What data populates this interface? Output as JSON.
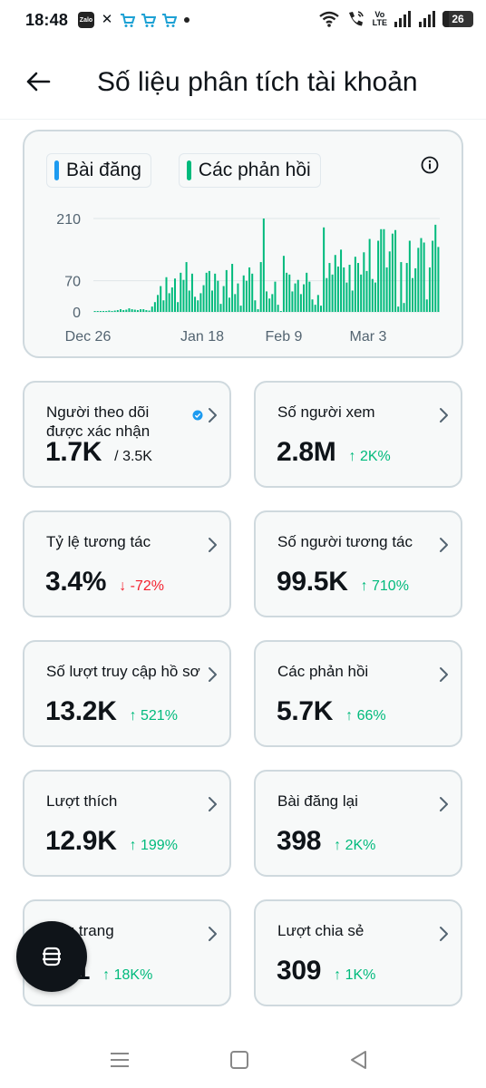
{
  "status_bar": {
    "time": "18:48",
    "volte_top": "Vo",
    "volte_bottom": "LTE",
    "battery": "26",
    "app_icons": [
      "zalo-icon",
      "x-app-icon",
      "shopee-cart-icon",
      "shopee-cart-icon",
      "shopee-cart-icon"
    ],
    "right_icons": [
      "wifi-icon",
      "call-wifi-icon",
      "signal-icon",
      "signal-icon",
      "battery-icon"
    ]
  },
  "header": {
    "title": "Số liệu phân tích tài khoản"
  },
  "chart": {
    "legend": [
      {
        "label": "Bài đăng",
        "color": "#1d9bf0"
      },
      {
        "label": "Các phản hồi",
        "color": "#00ba7c"
      }
    ],
    "info_icon": "info-icon"
  },
  "chart_data": {
    "type": "bar",
    "y_ticks": [
      "210",
      "70",
      "0"
    ],
    "y_tick_values": [
      210,
      70,
      0
    ],
    "x_ticks": [
      "Dec 26",
      "Jan 18",
      "Feb 9",
      "Mar 3"
    ],
    "ylim": [
      0,
      210
    ],
    "grid": true,
    "series": [
      {
        "name": "Các phản hồi",
        "color": "#00ba7c",
        "values": [
          2,
          2,
          2,
          2,
          2,
          3,
          2,
          3,
          4,
          6,
          4,
          5,
          8,
          6,
          5,
          4,
          6,
          6,
          4,
          3,
          12,
          22,
          38,
          58,
          26,
          78,
          42,
          55,
          75,
          22,
          88,
          72,
          112,
          48,
          86,
          34,
          26,
          42,
          60,
          88,
          92,
          48,
          86,
          70,
          18,
          58,
          94,
          32,
          108,
          40,
          64,
          14,
          82,
          70,
          100,
          86,
          26,
          6,
          112,
          210,
          46,
          30,
          40,
          68,
          16,
          2,
          126,
          88,
          84,
          46,
          64,
          72,
          40,
          62,
          88,
          68,
          28,
          16,
          38,
          14,
          190,
          76,
          110,
          84,
          128,
          102,
          140,
          100,
          66,
          106,
          48,
          124,
          110,
          84,
          134,
          92,
          164,
          74,
          66,
          160,
          186,
          186,
          100,
          136,
          176,
          184,
          12,
          112,
          20,
          110,
          160,
          76,
          98,
          144,
          166,
          156,
          28,
          100,
          160,
          196,
          146
        ]
      }
    ]
  },
  "metrics": [
    {
      "label": "Người theo dõi được xác nhận",
      "value": "1.7K",
      "sub": "/ 3.5K",
      "verified": true
    },
    {
      "label": "Số người xem",
      "value": "2.8M",
      "change": "↑ 2K%",
      "direction": "up"
    },
    {
      "label": "Tỷ lệ tương tác",
      "value": "3.4%",
      "change": "↓ -72%",
      "direction": "down"
    },
    {
      "label": "Số người tương tác",
      "value": "99.5K",
      "change": "↑ 710%",
      "direction": "up"
    },
    {
      "label": "Số lượt truy cập hồ sơ",
      "value": "13.2K",
      "change": "↑ 521%",
      "direction": "up"
    },
    {
      "label": "Các phản hồi",
      "value": "5.7K",
      "change": "↑ 66%",
      "direction": "up"
    },
    {
      "label": "Lượt thích",
      "value": "12.9K",
      "change": "↑ 199%",
      "direction": "up"
    },
    {
      "label": "Bài đăng lại",
      "value": "398",
      "change": "↑ 2K%",
      "direction": "up"
    },
    {
      "label": "Dấu trang",
      "value": "951",
      "change": "↑ 18K%",
      "direction": "up"
    },
    {
      "label": "Lượt chia sẻ",
      "value": "309",
      "change": "↑ 1K%",
      "direction": "up"
    }
  ],
  "fab": {
    "icon": "grok-icon"
  },
  "navbar": {
    "icons": [
      "menu-icon",
      "home-square-icon",
      "back-triangle-icon"
    ]
  }
}
